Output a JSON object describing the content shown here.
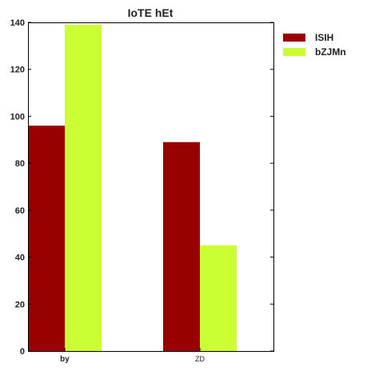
{
  "chart_data": {
    "type": "bar",
    "title": "IoTE hEt",
    "xlabel": "",
    "ylabel": "",
    "categories": [
      "by",
      "ZD"
    ],
    "series": [
      {
        "name": "ISIH",
        "values": [
          96,
          89
        ],
        "color": "#990000"
      },
      {
        "name": "bZJMn",
        "values": [
          139,
          45
        ],
        "color": "#ccff33"
      }
    ],
    "ylim": [
      0,
      140
    ],
    "yticks": [
      0,
      20,
      40,
      60,
      80,
      100,
      120,
      140
    ],
    "grid": false,
    "legend_position": "top-right outside"
  }
}
